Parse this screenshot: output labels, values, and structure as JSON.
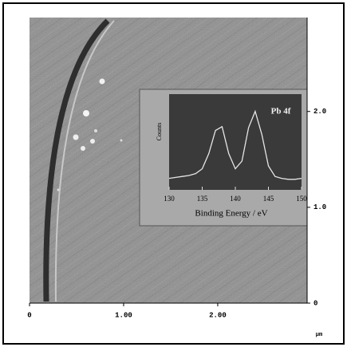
{
  "image_axes": {
    "xlim": [
      0,
      2.95
    ],
    "xticks": [
      0,
      {
        "value": 1,
        "label": "1.00"
      },
      {
        "value": 2,
        "label": "2.00"
      }
    ],
    "ylim": [
      0,
      2.98
    ],
    "yticks": [
      0,
      {
        "value": 1,
        "label": "1.0"
      },
      {
        "value": 2,
        "label": "2.0"
      }
    ],
    "unit": "µm"
  },
  "chart_data": {
    "type": "line",
    "title": "Pb 4f",
    "xlabel": "Binding Energy / eV",
    "ylabel": "Counts",
    "x": [
      130,
      131,
      132,
      133,
      134,
      135,
      136,
      137,
      138,
      139,
      140,
      141,
      142,
      143,
      144,
      145,
      146,
      147,
      148,
      149,
      150
    ],
    "values": [
      12,
      13,
      14,
      15,
      17,
      22,
      38,
      62,
      66,
      38,
      22,
      30,
      65,
      82,
      58,
      25,
      14,
      12,
      11,
      11,
      12
    ],
    "xlim": [
      130,
      150
    ],
    "xticks": [
      130,
      135,
      140,
      145,
      150
    ],
    "ylim": [
      0,
      100
    ],
    "color": "#e6e6e6"
  }
}
